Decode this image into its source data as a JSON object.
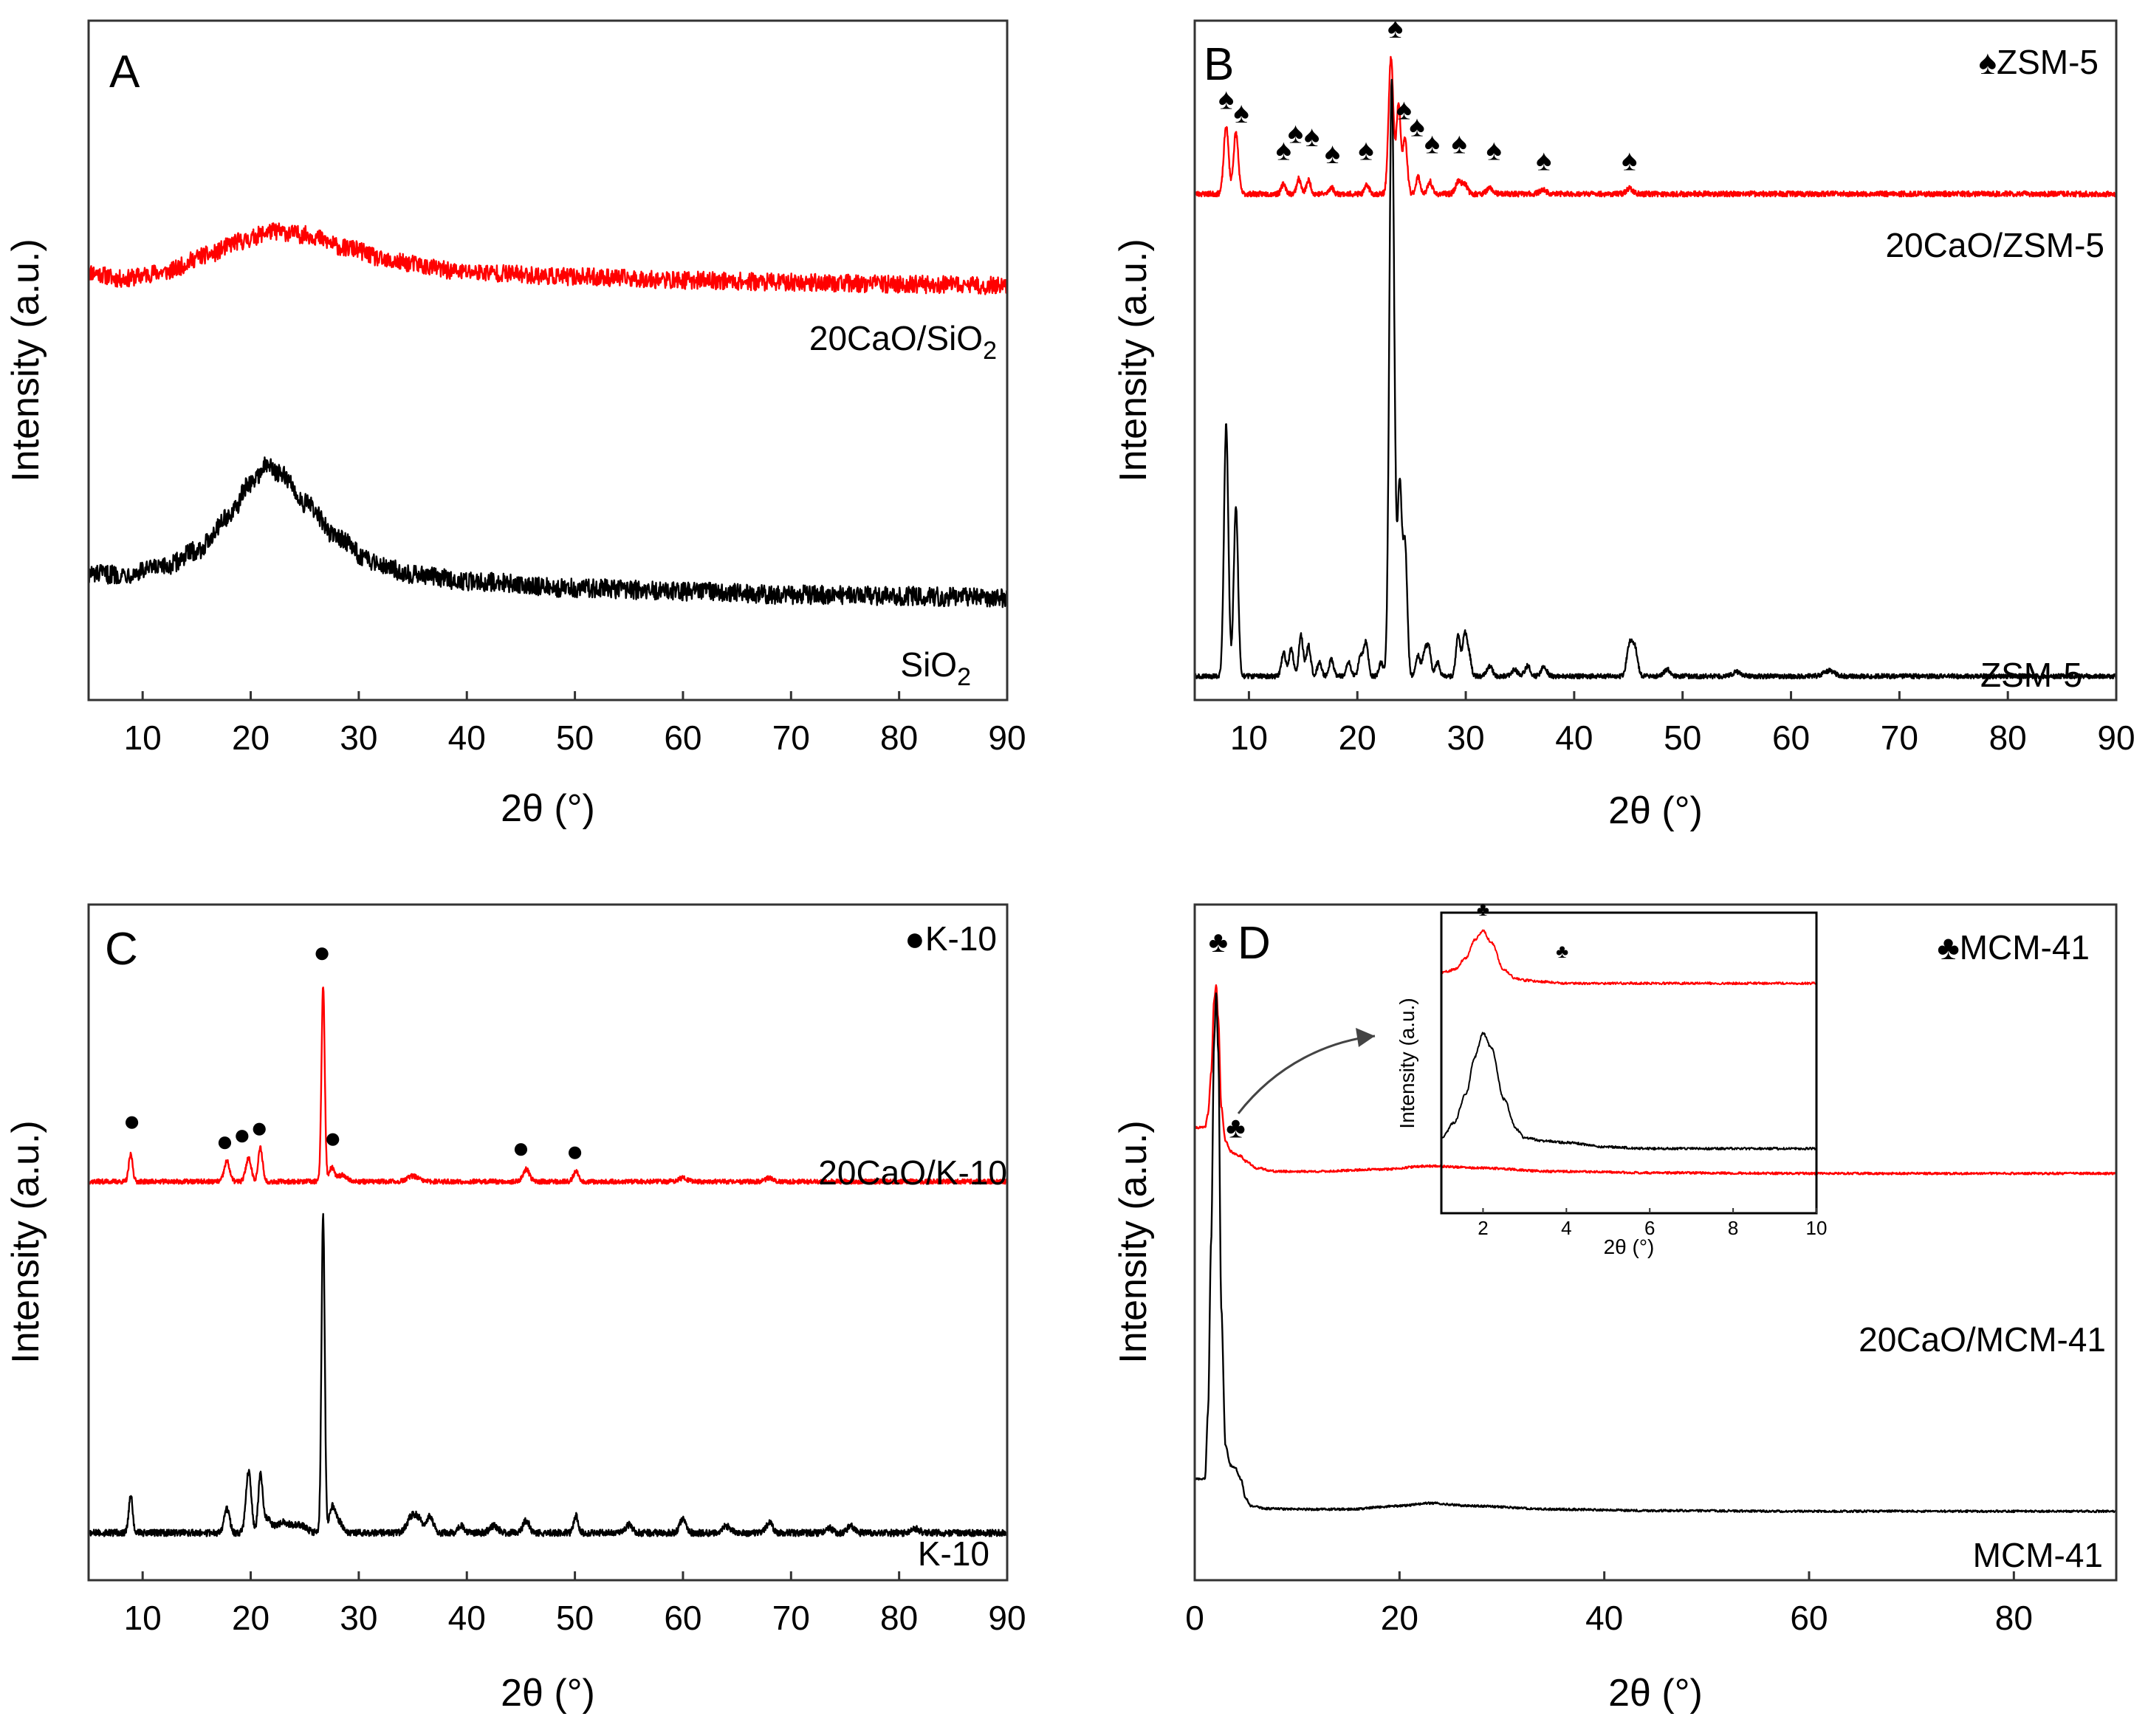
{
  "figure": {
    "axis_title_x": "2θ (°)",
    "axis_title_y": "Intensity (a.u.)"
  },
  "colors": {
    "support": "#000000",
    "cao": "#ff0000",
    "frame": "#000000"
  },
  "chart_data": [
    {
      "panel": "A",
      "type": "line",
      "xlabel": "2θ (°)",
      "ylabel": "Intensity (a.u.)",
      "xlim": [
        5,
        90
      ],
      "ylim": [
        0,
        100
      ],
      "xticks": [
        10,
        20,
        30,
        40,
        50,
        60,
        70,
        80,
        90
      ],
      "legend": "",
      "series": [
        {
          "name": "20CaO/SiO",
          "sub": "2",
          "color": "#ff0000",
          "noise": 1.3,
          "x": [
            5,
            8,
            12,
            16,
            19,
            22,
            25,
            29,
            33,
            40,
            50,
            60,
            70,
            80,
            90
          ],
          "y": [
            63,
            62,
            63,
            65.5,
            67.5,
            69,
            68.5,
            66.5,
            64.5,
            63,
            62.3,
            61.8,
            61.5,
            61.2,
            61
          ]
        },
        {
          "name": "SiO",
          "sub": "2",
          "color": "#000000",
          "noise": 1.4,
          "x": [
            5,
            8,
            12,
            15,
            18,
            20,
            21.5,
            23,
            25,
            28,
            31,
            35,
            40,
            50,
            60,
            70,
            80,
            90
          ],
          "y": [
            18.5,
            18.5,
            19.5,
            22,
            27,
            32,
            34.5,
            33,
            29,
            24,
            20.5,
            18.5,
            17.5,
            16.5,
            16,
            15.5,
            15.3,
            15
          ]
        }
      ],
      "annotations": []
    },
    {
      "panel": "B",
      "type": "line",
      "xlabel": "2θ (°)",
      "ylabel": "Intensity (a.u.)",
      "xlim": [
        5,
        90
      ],
      "ylim": [
        0,
        100
      ],
      "xticks": [
        10,
        20,
        30,
        40,
        50,
        60,
        70,
        80,
        90
      ],
      "legend": "♠ZSM-5",
      "series": [
        {
          "name": "20CaO/ZSM-5",
          "color": "#ff0000",
          "noise": 0.4,
          "baseline": 74.5,
          "peaks": [
            [
              7.9,
              10,
              0.22
            ],
            [
              8.8,
              9,
              0.22
            ],
            [
              13.2,
              1.5,
              0.2
            ],
            [
              14.6,
              2.2,
              0.2
            ],
            [
              15.5,
              2,
              0.2
            ],
            [
              17.6,
              1,
              0.2
            ],
            [
              20.9,
              1.3,
              0.2
            ],
            [
              23.1,
              20,
              0.22
            ],
            [
              23.8,
              13,
              0.2
            ],
            [
              24.4,
              8,
              0.2
            ],
            [
              25.6,
              2.5,
              0.2
            ],
            [
              26.7,
              1.8,
              0.2
            ],
            [
              29.3,
              1.8,
              0.25
            ],
            [
              29.9,
              1.5,
              0.25
            ],
            [
              32.2,
              0.8,
              0.3
            ],
            [
              37.1,
              0.6,
              0.3
            ],
            [
              45.1,
              0.8,
              0.3
            ]
          ]
        },
        {
          "name": "ZSM-5",
          "color": "#000000",
          "noise": 0.35,
          "baseline": 3.5,
          "peaks": [
            [
              7.9,
              37,
              0.2
            ],
            [
              8.8,
              25,
              0.2
            ],
            [
              13.2,
              3.5,
              0.2
            ],
            [
              13.9,
              4,
              0.2
            ],
            [
              14.8,
              6,
              0.2
            ],
            [
              15.5,
              4.5,
              0.2
            ],
            [
              16.5,
              2,
              0.2
            ],
            [
              17.6,
              2.5,
              0.2
            ],
            [
              19.2,
              2,
              0.2
            ],
            [
              20.3,
              3,
              0.2
            ],
            [
              20.8,
              5,
              0.2
            ],
            [
              22.2,
              2,
              0.2
            ],
            [
              23.1,
              59,
              0.2
            ],
            [
              23.3,
              40,
              0.2
            ],
            [
              23.9,
              28,
              0.2
            ],
            [
              24.4,
              19,
              0.2
            ],
            [
              25.6,
              3,
              0.2
            ],
            [
              26.2,
              3.5,
              0.2
            ],
            [
              26.6,
              4,
              0.2
            ],
            [
              27.4,
              2,
              0.2
            ],
            [
              29.3,
              6,
              0.2
            ],
            [
              29.9,
              6,
              0.2
            ],
            [
              30.3,
              3,
              0.2
            ],
            [
              32.2,
              1.5,
              0.25
            ],
            [
              34.5,
              1,
              0.25
            ],
            [
              35.7,
              1.5,
              0.25
            ],
            [
              37.2,
              1.5,
              0.25
            ],
            [
              45.1,
              4.5,
              0.25
            ],
            [
              45.6,
              4,
              0.25
            ],
            [
              48.6,
              1,
              0.3
            ],
            [
              55,
              0.6,
              0.4
            ],
            [
              63.5,
              0.8,
              0.5
            ]
          ]
        }
      ],
      "annotations": [
        {
          "x": 7.9,
          "y": 87,
          "text": "♠"
        },
        {
          "x": 9.3,
          "y": 85,
          "text": "♠"
        },
        {
          "x": 13.2,
          "y": 79.5,
          "text": "♠"
        },
        {
          "x": 14.3,
          "y": 82,
          "text": "♠"
        },
        {
          "x": 15.8,
          "y": 81.5,
          "text": "♠"
        },
        {
          "x": 17.7,
          "y": 79,
          "text": "♠"
        },
        {
          "x": 20.8,
          "y": 79.5,
          "text": "♠"
        },
        {
          "x": 23.5,
          "y": 97.5,
          "text": "♠"
        },
        {
          "x": 24.3,
          "y": 85.5,
          "text": "♠"
        },
        {
          "x": 25.5,
          "y": 83,
          "text": "♠"
        },
        {
          "x": 26.9,
          "y": 80.5,
          "text": "♠"
        },
        {
          "x": 29.4,
          "y": 80.5,
          "text": "♠"
        },
        {
          "x": 32.6,
          "y": 79.5,
          "text": "♠"
        },
        {
          "x": 37.2,
          "y": 78,
          "text": "♠"
        },
        {
          "x": 45.1,
          "y": 78,
          "text": "♠"
        }
      ]
    },
    {
      "panel": "C",
      "type": "line",
      "xlabel": "2θ (°)",
      "ylabel": "Intensity (a.u.)",
      "xlim": [
        5,
        90
      ],
      "ylim": [
        0,
        100
      ],
      "xticks": [
        10,
        20,
        30,
        40,
        50,
        60,
        70,
        80,
        90
      ],
      "legend": "●K-10",
      "series": [
        {
          "name": "20CaO/K-10",
          "color": "#ff0000",
          "noise": 0.35,
          "baseline": 59,
          "peaks": [
            [
              8.9,
              4,
              0.18
            ],
            [
              17.8,
              3,
              0.25
            ],
            [
              19.8,
              3.5,
              0.25
            ],
            [
              20.9,
              5,
              0.2
            ],
            [
              26.7,
              29,
              0.15
            ],
            [
              27.5,
              2,
              0.25
            ],
            [
              28.5,
              1,
              0.4
            ],
            [
              35,
              0.8,
              0.5
            ],
            [
              45.5,
              1.8,
              0.3
            ],
            [
              50.1,
              1.5,
              0.25
            ],
            [
              60,
              0.5,
              0.4
            ],
            [
              68,
              0.5,
              0.4
            ]
          ]
        },
        {
          "name": "K-10",
          "color": "#000000",
          "noise": 0.5,
          "baseline": 7,
          "peaks": [
            [
              8.9,
              5.5,
              0.18
            ],
            [
              17.8,
              3.5,
              0.25
            ],
            [
              19.8,
              9,
              0.25
            ],
            [
              20.9,
              8,
              0.2
            ],
            [
              21.5,
              2,
              0.4
            ],
            [
              23,
              1.5,
              0.6
            ],
            [
              24.5,
              1.2,
              0.6
            ],
            [
              26.7,
              47,
              0.15
            ],
            [
              27.5,
              3,
              0.25
            ],
            [
              28,
              2,
              0.4
            ],
            [
              34.8,
              2,
              0.4
            ],
            [
              35.5,
              2,
              0.4
            ],
            [
              36.6,
              2.5,
              0.3
            ],
            [
              39.5,
              1,
              0.3
            ],
            [
              42.5,
              1,
              0.4
            ],
            [
              45.5,
              1.8,
              0.3
            ],
            [
              50.1,
              2.5,
              0.2
            ],
            [
              55,
              1.2,
              0.3
            ],
            [
              60,
              2,
              0.3
            ],
            [
              64,
              1,
              0.4
            ],
            [
              68,
              1.5,
              0.3
            ],
            [
              73.5,
              0.8,
              0.3
            ],
            [
              75.5,
              1,
              0.3
            ],
            [
              81.5,
              0.6,
              0.4
            ]
          ]
        }
      ],
      "annotations": [
        {
          "x": 9,
          "y": 66.5,
          "text": "●"
        },
        {
          "x": 17.6,
          "y": 63.5,
          "text": "●"
        },
        {
          "x": 19.2,
          "y": 64.5,
          "text": "●"
        },
        {
          "x": 20.8,
          "y": 65.5,
          "text": "●"
        },
        {
          "x": 26.6,
          "y": 91.5,
          "text": "●"
        },
        {
          "x": 27.6,
          "y": 64,
          "text": "●"
        },
        {
          "x": 45,
          "y": 62.5,
          "text": "●"
        },
        {
          "x": 50,
          "y": 62,
          "text": "●"
        }
      ]
    },
    {
      "panel": "D",
      "type": "line",
      "xlabel": "2θ (°)",
      "ylabel": "Intensity (a.u.)",
      "xlim": [
        0,
        90
      ],
      "ylim": [
        0,
        100
      ],
      "xticks": [
        0,
        20,
        40,
        60,
        80
      ],
      "legend": "♣MCM-41",
      "series": [
        {
          "name": "20CaO/MCM-41",
          "color": "#ff0000",
          "noise": 0.15,
          "x": [
            1,
            1.3,
            1.6,
            1.9,
            2.1,
            2.3,
            2.6,
            3,
            3.5,
            4,
            4.5,
            5,
            6,
            8,
            12,
            18,
            23,
            28,
            35,
            45,
            60,
            75,
            90
          ],
          "y": [
            67,
            69,
            75,
            86,
            88,
            83,
            70,
            65,
            63.5,
            63,
            62.8,
            62,
            61,
            60.5,
            60.5,
            60.8,
            61.3,
            61,
            60.5,
            60.3,
            60.2,
            60.2,
            60.2
          ]
        },
        {
          "name": "MCM-41",
          "color": "#000000",
          "noise": 0.15,
          "x": [
            1,
            1.3,
            1.6,
            1.9,
            2.1,
            2.3,
            2.6,
            3,
            3.5,
            4,
            4.5,
            5,
            5.5,
            7,
            10,
            15,
            20,
            23,
            27,
            35,
            45,
            60,
            75,
            90
          ],
          "y": [
            15,
            25,
            50,
            80,
            87,
            78,
            40,
            20,
            17,
            16.5,
            15,
            12,
            11,
            10.6,
            10.5,
            10.5,
            11,
            11.4,
            11,
            10.5,
            10.3,
            10.2,
            10.2,
            10.2
          ]
        }
      ],
      "annotations": [
        {
          "x": 2.3,
          "y": 93,
          "text": "♣"
        },
        {
          "x": 4,
          "y": 65.5,
          "text": "♣"
        }
      ],
      "inset": {
        "xlabel": "2θ (°)",
        "ylabel": "Intensity (a.u.)",
        "xlim": [
          1,
          10
        ],
        "ylim": [
          0,
          100
        ],
        "xticks": [
          2,
          4,
          6,
          8,
          10
        ],
        "series": [
          {
            "name": "inset-20CaO/MCM-41",
            "color": "#ff0000",
            "noise": 0.4,
            "x": [
              1,
              1.3,
              1.6,
              1.8,
              2,
              2.2,
              2.5,
              2.8,
              3,
              3.5,
              4,
              6,
              8,
              10
            ],
            "y": [
              80,
              81,
              85,
              91,
              94,
              90,
              81,
              78,
              77.5,
              77,
              76.5,
              76.5,
              76.5,
              76.5
            ]
          },
          {
            "name": "inset-MCM-41",
            "color": "#000000",
            "noise": 0.4,
            "x": [
              1,
              1.3,
              1.6,
              1.8,
              2,
              2.2,
              2.5,
              2.8,
              3,
              3.5,
              4,
              5,
              6,
              8,
              10
            ],
            "y": [
              25,
              30,
              40,
              52,
              60,
              55,
              38,
              28,
              25,
              24,
              23.5,
              22,
              21.5,
              21.5,
              21.5
            ]
          }
        ],
        "annotations": [
          {
            "x": 2,
            "y": 99,
            "text": "♣"
          },
          {
            "x": 3.9,
            "y": 85,
            "text": "♣"
          }
        ]
      }
    }
  ]
}
